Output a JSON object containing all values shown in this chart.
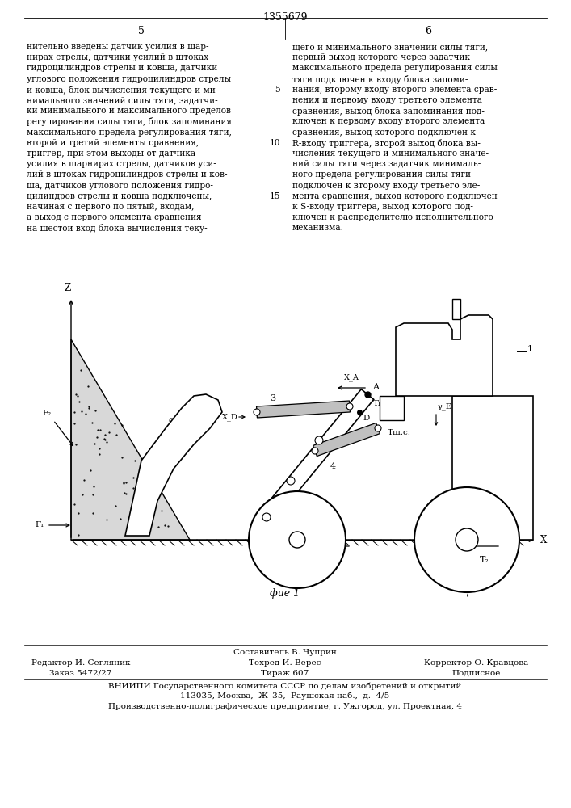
{
  "title": "1355679",
  "page_left": "5",
  "page_right": "6",
  "text_left": "нительно введены датчик усилия в шар-\nнирах стрелы, датчики усилий в штоках\nгидроцилиндров стрелы и ковша, датчики\nуглового положения гидроцилиндров стрелы\nи ковша, блок вычисления текущего и ми-\nнимального значений силы тяги, задатчи-\nки минимального и максимального пределов\nрегулирования силы тяги, блок запоминания\nмаксимального предела регулирования тяги,\nвторой и третий элементы сравнения,\nтриггер, при этом выходы от датчика\nусилия в шарнирах стрелы, датчиков уси-\nлий в штоках гидроцилиндров стрелы и ков-\nша, датчиков углового положения гидро-\nцилиндров стрелы и ковша подключены,\nначиная с первого по пятый, входам,\nа выход с первого элемента сравнения\nна шестой вход блока вычисления теку-",
  "text_right": "щего и минимального значений силы тяги,\nпервый выход которого через задатчик\nмаксимального предела регулирования силы\nтяги подключен к входу блока запоми-\nнания, второму входу второго элемента срав-\nнения и первому входу третьего элемента\nсравнения, выход блока запоминания под-\nключен к первому входу второго элемента\nсравнения, выход которого подключен к\nR-входу триггера, второй выход блока вы-\nчисления текущего и минимального значе-\nний силы тяги через задатчик минималь-\nного предела регулирования силы тяги\nподключен к второму входу третьего эле-\nмента сравнения, выход которого подключен\nк S-входу триггера, выход которого под-\nключен к распределителю исполнительного\nмеханизма.",
  "line_num_5": "5",
  "line_num_10": "10",
  "line_num_15": "15",
  "fig_caption": "фие 1",
  "footer_composit": "Составитель В. Чуприн",
  "footer_editor": "Редактор И. Сегляник",
  "footer_tech": "Техред И. Верес",
  "footer_corr": "Корректор О. Кравцова",
  "footer_order": "Заказ 5472/27",
  "footer_tirazh": "Тираж 607",
  "footer_podp": "Подписное",
  "footer_vniip": "ВНИИПИ Государственного комитета СССР по делам изобретений и открытий",
  "footer_addr1": "113035, Москва,  Ж–35,  Раушская наб.,  д.  4/5",
  "footer_addr2": "Производственно-полиграфическое предприятие, г. Ужгород, ул. Проектная, 4",
  "bg_color": "#ffffff",
  "text_color": "#000000"
}
